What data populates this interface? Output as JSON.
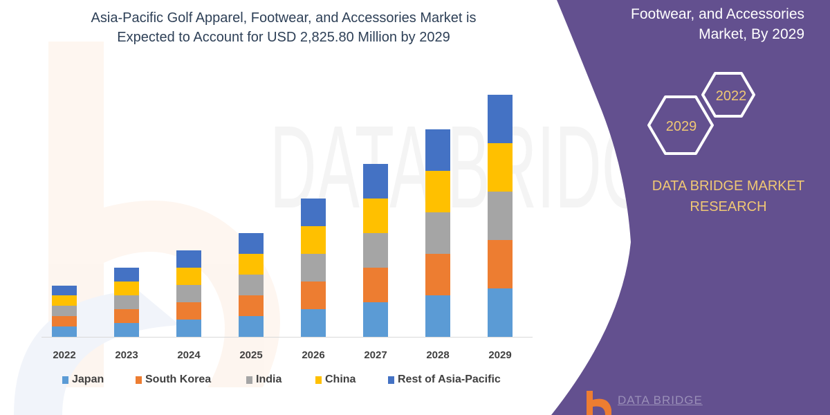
{
  "title_lines": [
    "Asia-Pacific Golf Apparel, Footwear, and Accessories Market is",
    "Expected to Account for USD 2,825.80 Million by 2029"
  ],
  "panel": {
    "title_lines": [
      "Footwear, and Accessories",
      "Market, By 2029"
    ],
    "hex_years": [
      "2022",
      "2029"
    ],
    "brand_lines": [
      "DATA BRIDGE MARKET",
      "RESEARCH"
    ],
    "logo_text": "DATA BRIDGE",
    "background_color": "#63508f",
    "accent_color": "#f0c874"
  },
  "chart_data": {
    "type": "bar",
    "stacked": true,
    "title": "Asia-Pacific Golf Apparel, Footwear, and Accessories Market is Expected to Account for USD 2,825.80 Million by 2029",
    "xlabel": "",
    "ylabel": "",
    "y_axis_shown": false,
    "grid": false,
    "legend_position": "bottom",
    "categories": [
      "2022",
      "2023",
      "2024",
      "2025",
      "2026",
      "2027",
      "2028",
      "2029"
    ],
    "series": [
      {
        "name": "Japan",
        "color": "#5b9bd5",
        "values": [
          15,
          20,
          25,
          30,
          40,
          50,
          60,
          70
        ]
      },
      {
        "name": "South Korea",
        "color": "#ed7d31",
        "values": [
          15,
          20,
          25,
          30,
          40,
          50,
          60,
          70
        ]
      },
      {
        "name": "India",
        "color": "#a5a5a5",
        "values": [
          15,
          20,
          25,
          30,
          40,
          50,
          60,
          70
        ]
      },
      {
        "name": "China",
        "color": "#ffc000",
        "values": [
          15,
          20,
          25,
          30,
          40,
          50,
          60,
          70
        ]
      },
      {
        "name": "Rest of Asia-Pacific",
        "color": "#4472c4",
        "values": [
          14,
          20,
          25,
          30,
          40,
          50,
          60,
          70
        ]
      }
    ]
  }
}
